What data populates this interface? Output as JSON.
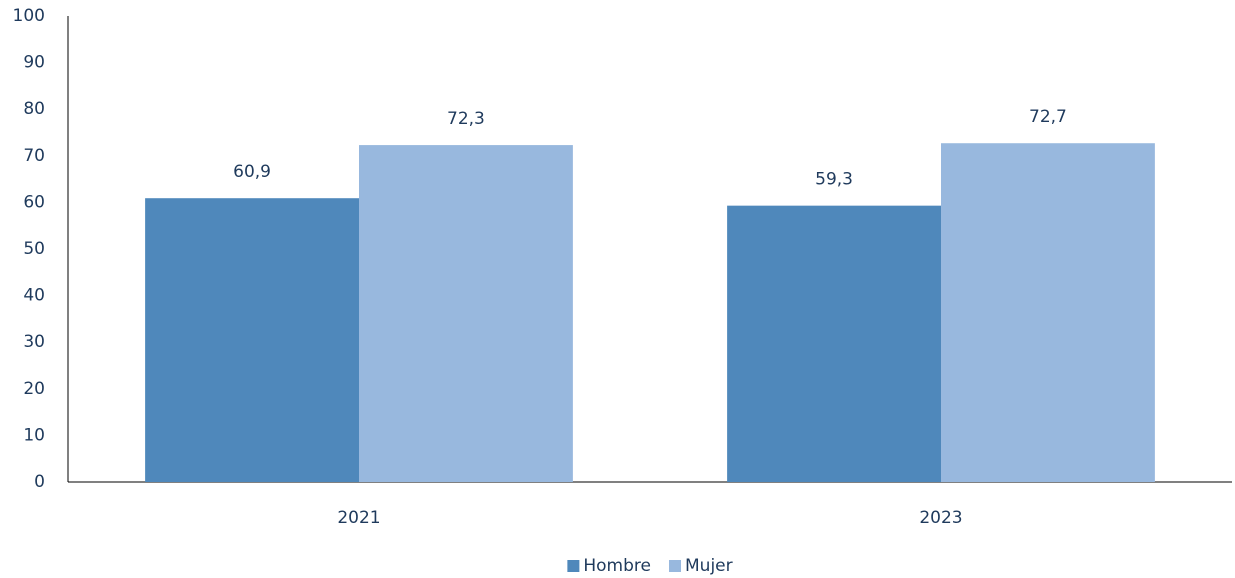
{
  "chart_data": {
    "type": "bar",
    "categories": [
      "2021",
      "2023"
    ],
    "series": [
      {
        "name": "Hombre",
        "color": "#4f88bb",
        "values": [
          60.9,
          59.3
        ],
        "value_labels": [
          "60,9",
          "59,3"
        ]
      },
      {
        "name": "Mujer",
        "color": "#98b8de",
        "values": [
          72.3,
          72.7
        ],
        "value_labels": [
          "72,3",
          "72,7"
        ]
      }
    ],
    "ylim": [
      0,
      100
    ],
    "yticks": [
      0,
      10,
      20,
      30,
      40,
      50,
      60,
      70,
      80,
      90,
      100
    ],
    "grid": false,
    "legend": "bottom"
  }
}
